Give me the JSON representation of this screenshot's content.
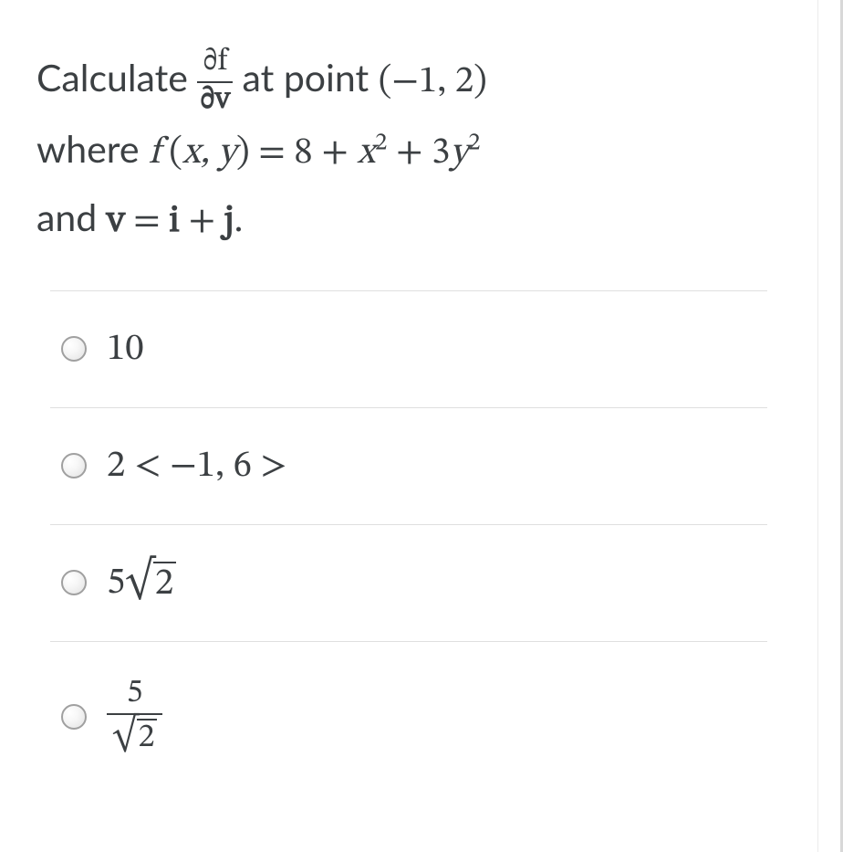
{
  "question": {
    "line1_prefix": "Calculate ",
    "fraction_num": "∂f",
    "fraction_den": "∂v",
    "line1_mid": "  at point ",
    "point": "(−1, 2)",
    "line2_prefix": "where ",
    "fn_name": "f",
    "fn_args_open": " (",
    "fn_args": "x, y",
    "fn_args_close": ") = ",
    "rhs_1": "8 + ",
    "xvar": "x",
    "sup2a": "2",
    "rhs_2": " + 3",
    "yvar": "y",
    "sup2b": "2",
    "line3_prefix": "and ",
    "v_var": "v",
    "eq": " = ",
    "i_var": "i",
    "plus": " + ",
    "j_var": "j",
    "dot": "."
  },
  "options": [
    {
      "type": "plain",
      "text": "10"
    },
    {
      "type": "plain",
      "text": "2 < −1, 6 >"
    },
    {
      "type": "sqrt",
      "coef": "5",
      "radicand": "2"
    },
    {
      "type": "frac_sqrt",
      "num": "5",
      "den_radicand": "2"
    }
  ],
  "colors": {
    "text": "#3c4043",
    "divider": "#dfdfdf",
    "radio_border": "#a0a0a0",
    "outer_border": "#d8d8d8"
  },
  "typography": {
    "question_fontsize": 41,
    "option_fontsize": 41,
    "fraction_fontsize": 34
  }
}
